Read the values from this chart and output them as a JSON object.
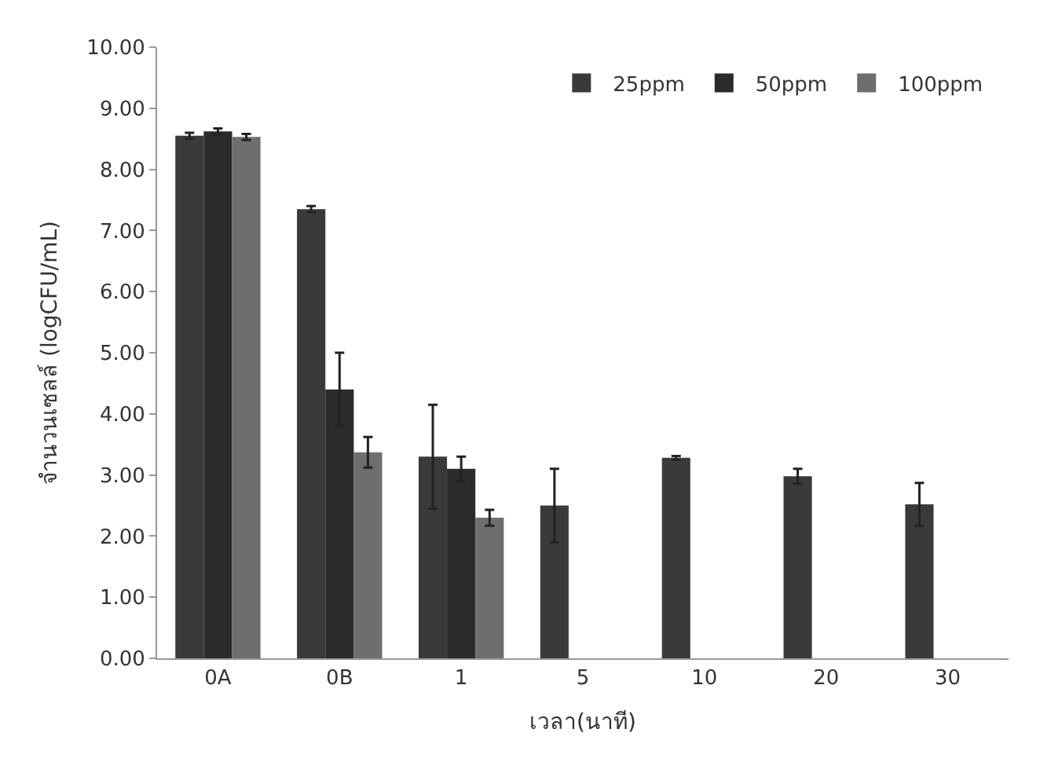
{
  "chart_data": {
    "type": "bar",
    "xlabel": "เวลา(นาที)",
    "ylabel": "จำนวนเซลล์ (logCFU/mL)",
    "categories": [
      "0A",
      "0B",
      "1",
      "5",
      "10",
      "20",
      "30"
    ],
    "series": [
      {
        "name": "25ppm",
        "color": "#3a3a3a",
        "values": [
          8.55,
          7.35,
          3.3,
          2.5,
          3.28,
          2.98,
          2.52
        ],
        "errors": [
          0.05,
          0.05,
          0.85,
          0.6,
          0.03,
          0.12,
          0.35
        ]
      },
      {
        "name": "50ppm",
        "color": "#2b2b2b",
        "values": [
          8.62,
          4.4,
          3.1,
          null,
          null,
          null,
          null
        ],
        "errors": [
          0.05,
          0.6,
          0.2,
          null,
          null,
          null,
          null
        ]
      },
      {
        "name": "100ppm",
        "color": "#6e6e6e",
        "values": [
          8.53,
          3.37,
          2.3,
          null,
          null,
          null,
          null
        ],
        "errors": [
          0.05,
          0.25,
          0.13,
          null,
          null,
          null,
          null
        ]
      }
    ],
    "ylim": [
      0,
      10
    ],
    "yticks": [
      {
        "value": 0,
        "label": "0.00"
      },
      {
        "value": 1,
        "label": "1.00"
      },
      {
        "value": 2,
        "label": "2.00"
      },
      {
        "value": 3,
        "label": "3.00"
      },
      {
        "value": 4,
        "label": "4.00"
      },
      {
        "value": 5,
        "label": "5.00"
      },
      {
        "value": 6,
        "label": "6.00"
      },
      {
        "value": 7,
        "label": "7.00"
      },
      {
        "value": 8,
        "label": "8.00"
      },
      {
        "value": 9,
        "label": "9.00"
      },
      {
        "value": 10,
        "label": "10.00"
      }
    ],
    "grid": false,
    "legend": "top right"
  }
}
